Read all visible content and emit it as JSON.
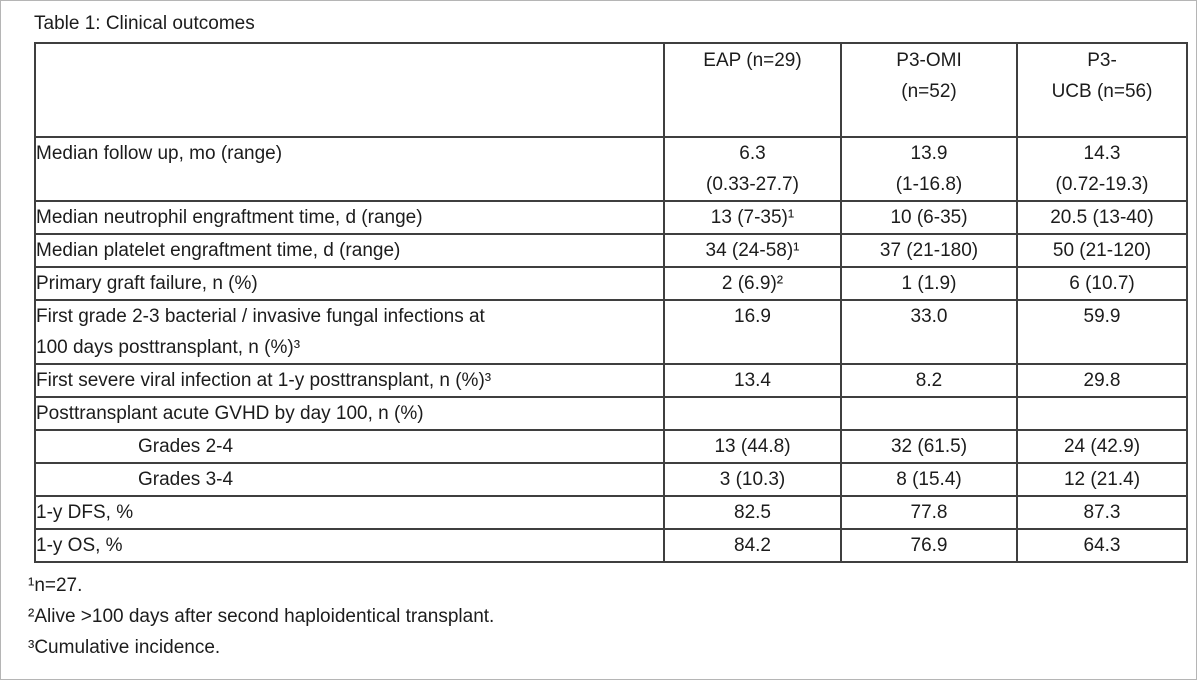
{
  "title": "Table 1: Clinical outcomes",
  "table": {
    "header": {
      "row_label": "",
      "columns": [
        "EAP (n=29)",
        "P3-OMI\n(n=52)",
        "P3-\nUCB (n=56)"
      ]
    },
    "rows": [
      {
        "label": "Median follow up, mo (range)",
        "indent": false,
        "values": [
          "6.3\n(0.33-27.7)",
          "13.9\n(1-16.8)",
          "14.3\n(0.72-19.3)"
        ]
      },
      {
        "label": "Median neutrophil engraftment time, d (range)",
        "indent": false,
        "values": [
          "13 (7-35)¹",
          "10 (6-35)",
          "20.5 (13-40)"
        ]
      },
      {
        "label": "Median platelet engraftment time, d (range)",
        "indent": false,
        "values": [
          "34 (24-58)¹",
          "37 (21-180)",
          "50 (21-120)"
        ]
      },
      {
        "label": "Primary graft failure, n (%)",
        "indent": false,
        "values": [
          "2 (6.9)²",
          "1 (1.9)",
          "6 (10.7)"
        ]
      },
      {
        "label": "First grade 2-3 bacterial / invasive fungal infections at\n100 days posttransplant, n (%)³",
        "indent": false,
        "values": [
          "16.9",
          "33.0",
          "59.9"
        ]
      },
      {
        "label": "First severe viral infection at 1-y posttransplant, n (%)³",
        "indent": false,
        "values": [
          "13.4",
          "8.2",
          "29.8"
        ]
      },
      {
        "label": "Posttransplant acute GVHD by day 100, n (%)",
        "indent": false,
        "values": [
          "",
          "",
          ""
        ]
      },
      {
        "label": "Grades 2-4",
        "indent": true,
        "values": [
          "13 (44.8)",
          "32 (61.5)",
          "24 (42.9)"
        ]
      },
      {
        "label": "Grades 3-4",
        "indent": true,
        "values": [
          "3 (10.3)",
          "8 (15.4)",
          "12 (21.4)"
        ]
      },
      {
        "label": "1-y DFS, %",
        "indent": false,
        "values": [
          "82.5",
          "77.8",
          "87.3"
        ]
      },
      {
        "label": "1-y OS, %",
        "indent": false,
        "values": [
          "84.2",
          "76.9",
          "64.3"
        ]
      }
    ],
    "footnotes": [
      "¹n=27.",
      "²Alive >100 days after second haploidentical transplant.",
      "³Cumulative incidence."
    ]
  }
}
